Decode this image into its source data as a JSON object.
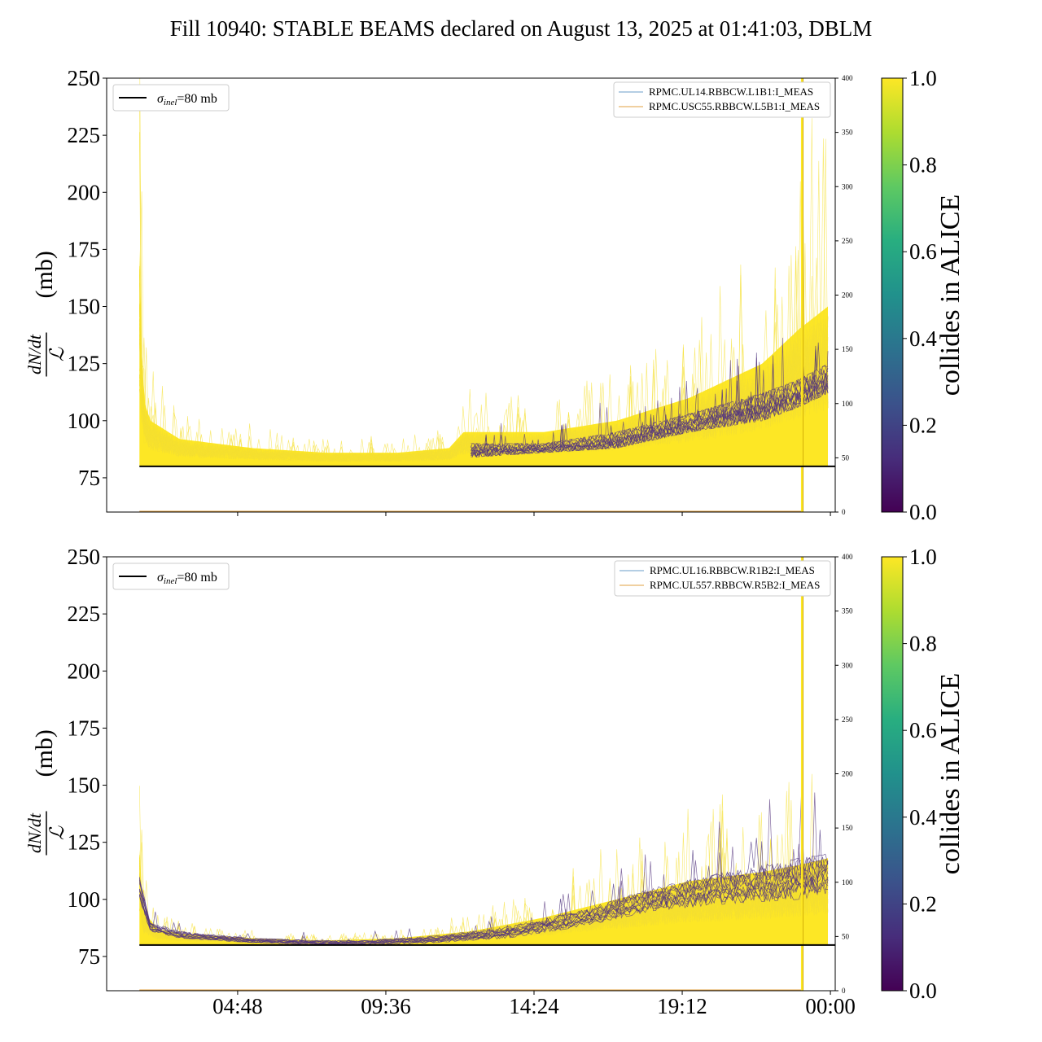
{
  "title": "Fill 10940: STABLE BEAMS declared on August 13, 2025 at 01:41:03, DBLM",
  "chart_data": {
    "type": "line",
    "x_tick_labels": [
      "04:48",
      "09:36",
      "14:24",
      "19:12",
      "00:00"
    ],
    "panels": [
      {
        "ylabel": "dN/dt / ℒ (mb)",
        "ylim": [
          60,
          250
        ],
        "y_ticks": [
          75,
          100,
          125,
          150,
          175,
          200,
          225,
          250
        ],
        "y2lim": [
          0,
          400
        ],
        "y2_ticks": [
          0,
          50,
          100,
          150,
          200,
          250,
          300,
          350,
          400
        ],
        "reference_line": {
          "label": "σinel=80 mb",
          "value": 80
        },
        "legend_left": "σinel=80 mb",
        "series": [
          {
            "name": "RPMC.UL14.RBBCW.L1B1:I_MEAS",
            "color": "#6a9cc8",
            "values": []
          },
          {
            "name": "RPMC.USC55.RBBCW.L5B1:I_MEAS",
            "color": "#e0a040",
            "values": []
          }
        ],
        "envelope_yellow": {
          "x": [
            0.045,
            0.05,
            0.06,
            0.1,
            0.2,
            0.3,
            0.4,
            0.47,
            0.49,
            0.6,
            0.7,
            0.8,
            0.9,
            0.95,
            0.99
          ],
          "upper": [
            175,
            110,
            100,
            92,
            88,
            86,
            86,
            88,
            95,
            95,
            100,
            110,
            125,
            140,
            150
          ],
          "lower": [
            80,
            80,
            80,
            80,
            80,
            80,
            80,
            80,
            80,
            80,
            80,
            80,
            80,
            80,
            80
          ]
        },
        "envelope_purple": {
          "x": [
            0.5,
            0.6,
            0.7,
            0.8,
            0.9,
            0.95,
            0.99
          ],
          "upper": [
            90,
            90,
            95,
            103,
            112,
            118,
            125
          ],
          "lower": [
            84,
            86,
            88,
            95,
            100,
            106,
            112
          ]
        }
      },
      {
        "ylabel": "dN/dt / ℒ (mb)",
        "ylim": [
          60,
          250
        ],
        "y_ticks": [
          75,
          100,
          125,
          150,
          175,
          200,
          225,
          250
        ],
        "y2lim": [
          0,
          400
        ],
        "y2_ticks": [
          0,
          50,
          100,
          150,
          200,
          250,
          300,
          350,
          400
        ],
        "reference_line": {
          "label": "σinel=80 mb",
          "value": 80
        },
        "legend_left": "σinel=80 mb",
        "series": [
          {
            "name": "RPMC.UL16.RBBCW.R1B2:I_MEAS",
            "color": "#6a9cc8",
            "values": []
          },
          {
            "name": "RPMC.UL557.RBBCW.R5B2:I_MEAS",
            "color": "#e0a040",
            "values": []
          }
        ],
        "envelope_yellow": {
          "x": [
            0.045,
            0.05,
            0.07,
            0.1,
            0.2,
            0.3,
            0.4,
            0.5,
            0.6,
            0.7,
            0.8,
            0.9,
            0.95,
            0.99
          ],
          "upper": [
            122,
            95,
            87,
            85,
            83,
            82,
            83,
            86,
            92,
            100,
            108,
            112,
            115,
            118
          ],
          "lower": [
            80,
            80,
            80,
            80,
            80,
            80,
            80,
            80,
            80,
            80,
            80,
            80,
            80,
            80
          ]
        },
        "envelope_purple": {
          "x": [
            0.045,
            0.06,
            0.1,
            0.2,
            0.3,
            0.35,
            0.45,
            0.55,
            0.65,
            0.75,
            0.85,
            0.95,
            0.99
          ],
          "upper": [
            110,
            90,
            86,
            83,
            82,
            82,
            84,
            88,
            95,
            105,
            112,
            118,
            120
          ],
          "lower": [
            100,
            86,
            83,
            81,
            80,
            80,
            81,
            83,
            88,
            95,
            98,
            100,
            102
          ]
        }
      }
    ],
    "colorbar": {
      "label": "collides in ALICE",
      "range": [
        0.0,
        1.0
      ],
      "ticks": [
        "0.0",
        "0.2",
        "0.4",
        "0.6",
        "0.8",
        "1.0"
      ],
      "colormap": "viridis"
    }
  }
}
